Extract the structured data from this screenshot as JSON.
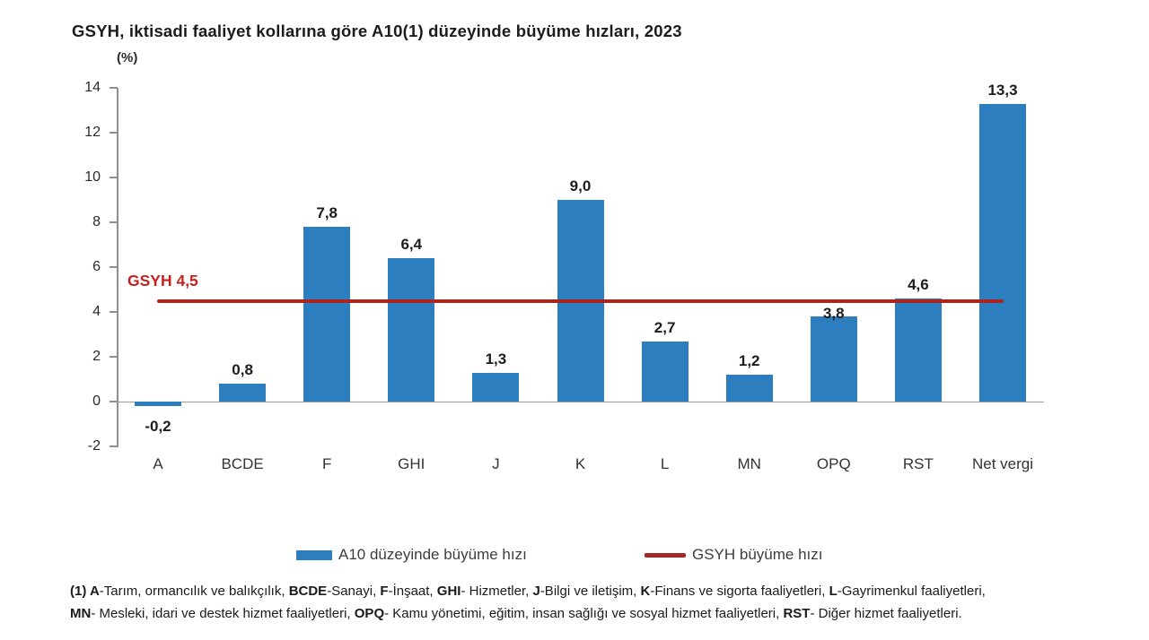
{
  "chart_data": {
    "type": "bar",
    "title": "GSYH, iktisadi faaliyet kollarına göre A10(1) düzeyinde büyüme hızları, 2023",
    "unit_label": "(%)",
    "categories": [
      "A",
      "BCDE",
      "F",
      "GHI",
      "J",
      "K",
      "L",
      "MN",
      "OPQ",
      "RST",
      "Net vergi"
    ],
    "series": [
      {
        "name": "A10 düzeyinde büyüme hızı",
        "values": [
          -0.2,
          0.8,
          7.8,
          6.4,
          1.3,
          9.0,
          2.7,
          1.2,
          3.8,
          4.6,
          13.3
        ]
      }
    ],
    "value_labels": [
      "-0,2",
      "0,8",
      "7,8",
      "6,4",
      "1,3",
      "9,0",
      "2,7",
      "1,2",
      "3,8",
      "4,6",
      "13,3"
    ],
    "reference_line": {
      "value": 4.5,
      "label": "GSYH 4,5",
      "color": "#ab2620",
      "label_color": "#c2221f"
    },
    "ylim": [
      -2,
      14
    ],
    "yticks": [
      14,
      12,
      10,
      8,
      6,
      4,
      2,
      0,
      -2
    ],
    "grid": "zero-line-only",
    "bar_color": "#2d7ebf",
    "legend_position": "bottom",
    "legend": [
      {
        "label": "A10 düzeyinde büyüme hızı",
        "marker": "bar",
        "color": "#2d7ebf"
      },
      {
        "label": "GSYH büyüme hızı",
        "marker": "line",
        "color": "#9e2b25"
      }
    ]
  },
  "footnote": {
    "lines": [
      [
        {
          "t": "(1) ",
          "b": true
        },
        {
          "t": "A",
          "b": true
        },
        {
          "t": "-Tarım, ormancılık ve balıkçılık, ",
          "b": false
        },
        {
          "t": "BCDE",
          "b": true
        },
        {
          "t": "-Sanayi, ",
          "b": false
        },
        {
          "t": "F",
          "b": true
        },
        {
          "t": "-İnşaat, ",
          "b": false
        },
        {
          "t": "GHI",
          "b": true
        },
        {
          "t": "- Hizmetler, ",
          "b": false
        },
        {
          "t": "J",
          "b": true
        },
        {
          "t": "-Bilgi ve iletişim, ",
          "b": false
        },
        {
          "t": "K",
          "b": true
        },
        {
          "t": "-Finans ve sigorta faaliyetleri, ",
          "b": false
        },
        {
          "t": "L",
          "b": true
        },
        {
          "t": "-Gayrimenkul faaliyetleri,",
          "b": false
        }
      ],
      [
        {
          "t": "MN",
          "b": true
        },
        {
          "t": "- Mesleki, idari ve destek hizmet faaliyetleri, ",
          "b": false
        },
        {
          "t": "OPQ",
          "b": true
        },
        {
          "t": "- Kamu yönetimi, eğitim, insan sağlığı ve sosyal hizmet faaliyetleri, ",
          "b": false
        },
        {
          "t": "RST",
          "b": true
        },
        {
          "t": "- Diğer hizmet faaliyetleri.",
          "b": false
        }
      ]
    ]
  }
}
